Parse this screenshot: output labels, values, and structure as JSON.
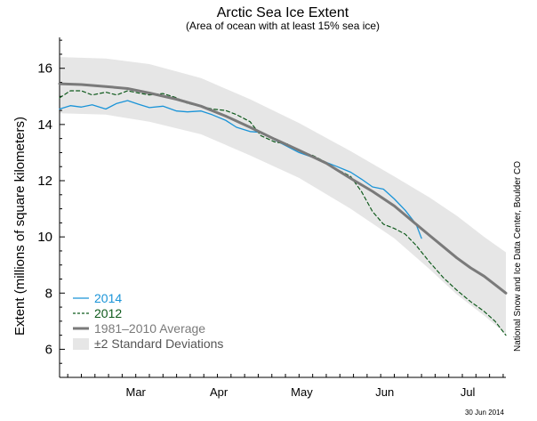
{
  "chart_data": {
    "type": "line",
    "title": "Arctic Sea Ice Extent",
    "subtitle": "(Area of ocean with at least 15% sea ice)",
    "ylabel": "Extent (millions of square kilometers)",
    "xlabel": "",
    "ylim": [
      5,
      17.1
    ],
    "x_unit": "day of year",
    "xlim": [
      47,
      211
    ],
    "x_ticks": [
      {
        "label": "Mar",
        "value": 75
      },
      {
        "label": "Apr",
        "value": 105.5
      },
      {
        "label": "May",
        "value": 136
      },
      {
        "label": "Jun",
        "value": 166.5
      },
      {
        "label": "Jul",
        "value": 197
      }
    ],
    "y_ticks": [
      6,
      8,
      10,
      12,
      14,
      16
    ],
    "grid": false,
    "legend_position": "bottom-left",
    "series": [
      {
        "name": "2014",
        "color": "#1a94d8",
        "style": "solid",
        "x": [
          47,
          51,
          55,
          59,
          64,
          68,
          72,
          76,
          80,
          85,
          90,
          94,
          99,
          103,
          108,
          112,
          117,
          121,
          126,
          131,
          135,
          140,
          145,
          149,
          154,
          158,
          162,
          166,
          170,
          174,
          178,
          180
        ],
        "y": [
          14.55,
          14.67,
          14.62,
          14.7,
          14.55,
          14.75,
          14.85,
          14.72,
          14.6,
          14.65,
          14.48,
          14.45,
          14.48,
          14.35,
          14.15,
          13.9,
          13.75,
          13.72,
          13.45,
          13.2,
          13.0,
          12.83,
          12.65,
          12.5,
          12.3,
          12.05,
          11.78,
          11.7,
          11.35,
          10.95,
          10.45,
          9.95
        ]
      },
      {
        "name": "2012",
        "color": "#0f5a1c",
        "style": "dashed",
        "x": [
          47,
          51,
          55,
          59,
          64,
          68,
          72,
          76,
          80,
          85,
          90,
          94,
          99,
          103,
          108,
          112,
          117,
          121,
          126,
          131,
          135,
          140,
          145,
          149,
          154,
          158,
          162,
          166,
          170,
          174,
          178,
          183,
          188,
          193,
          198,
          203,
          207,
          211
        ],
        "y": [
          14.95,
          15.2,
          15.2,
          15.05,
          15.15,
          15.05,
          15.2,
          15.12,
          15.05,
          15.1,
          14.95,
          14.75,
          14.65,
          14.55,
          14.5,
          14.35,
          14.1,
          13.6,
          13.38,
          13.3,
          13.05,
          12.9,
          12.65,
          12.4,
          12.15,
          11.6,
          10.9,
          10.45,
          10.3,
          10.1,
          9.7,
          9.1,
          8.55,
          8.1,
          7.7,
          7.35,
          7.0,
          6.5
        ]
      },
      {
        "name": "1981–2010 Average",
        "color": "#7a7a7a",
        "style": "solid-thick",
        "x": [
          47,
          55,
          64,
          72,
          80,
          90,
          99,
          108,
          117,
          126,
          135,
          145,
          154,
          162,
          170,
          178,
          183,
          188,
          193,
          198,
          203,
          207,
          211
        ],
        "y": [
          15.45,
          15.42,
          15.35,
          15.28,
          15.12,
          14.9,
          14.65,
          14.3,
          13.9,
          13.48,
          13.08,
          12.62,
          12.08,
          11.62,
          11.1,
          10.45,
          10.05,
          9.65,
          9.25,
          8.9,
          8.6,
          8.3,
          8.0
        ]
      }
    ],
    "band": {
      "name": "±2 Standard Deviations",
      "color": "#e6e6e6",
      "x": [
        47,
        64,
        80,
        99,
        117,
        135,
        154,
        170,
        183,
        193,
        203,
        211
      ],
      "upper": [
        16.4,
        16.35,
        16.15,
        15.65,
        14.9,
        14.05,
        13.05,
        12.15,
        11.4,
        10.75,
        10.0,
        9.45
      ],
      "lower": [
        14.4,
        14.35,
        14.1,
        13.65,
        12.9,
        12.1,
        11.0,
        9.95,
        8.85,
        7.95,
        7.2,
        6.55
      ]
    }
  },
  "legend": [
    {
      "label": "2014",
      "color": "#1a94d8",
      "kind": "line-solid"
    },
    {
      "label": "2012",
      "color": "#0f5a1c",
      "kind": "line-dashed"
    },
    {
      "label": "1981–2010 Average",
      "color": "#7a7a7a",
      "kind": "line-thick"
    },
    {
      "label": "±2 Standard Deviations",
      "color": "#e6e6e6",
      "kind": "band"
    }
  ],
  "credit": "National Snow and Ice Data Center, Boulder CO",
  "date_stamp": "30 Jun 2014"
}
